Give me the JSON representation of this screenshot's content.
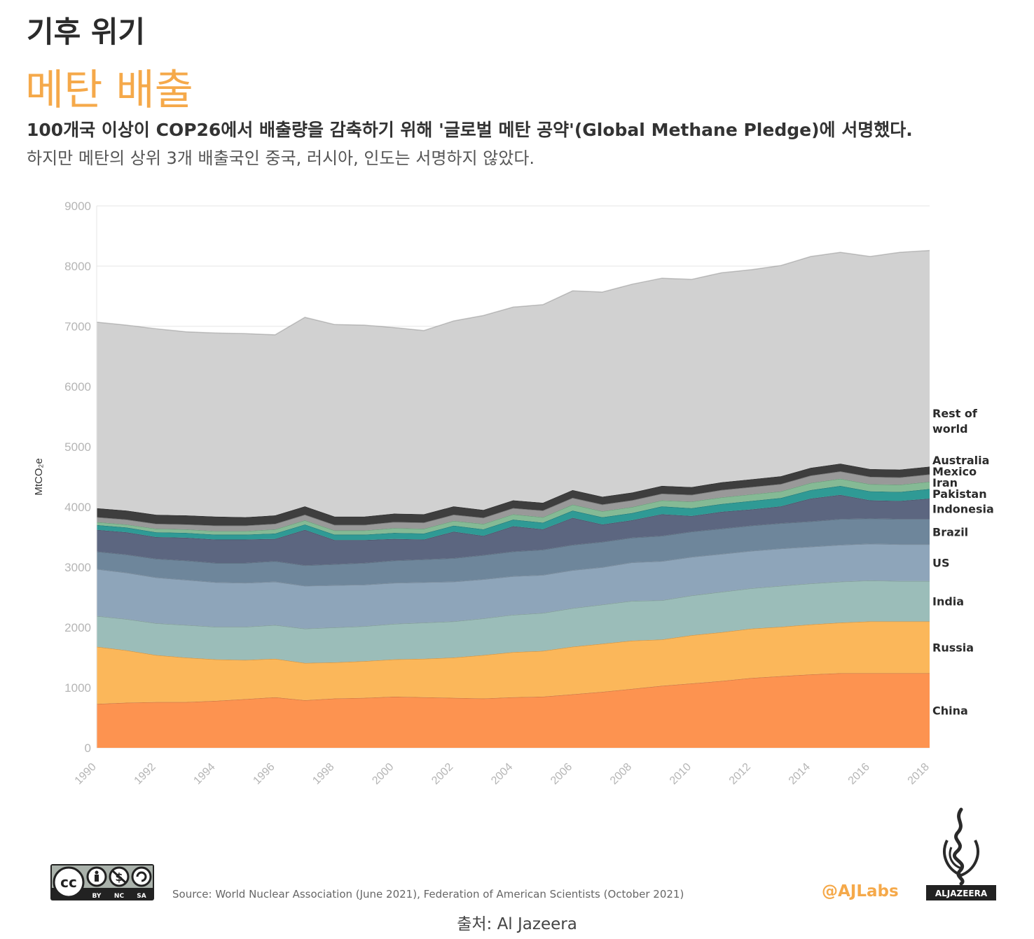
{
  "header": {
    "kicker": "기후 위기",
    "title": "메탄 배출",
    "subtitle_bold": "100개국 이상이 COP26에서 배출량을 감축하기 위해 '글로벌 메탄 공약'(Global Methane Pledge)에 서명했다.",
    "subtitle": "하지만 메탄의 상위 3개 배출국인 중국, 러시아, 인도는 서명하지 않았다."
  },
  "footer": {
    "source": "Source: World Nuclear Association (June 2021), Federation of American Scientists (October 2021)",
    "handle": "@AJLabs",
    "logo_text": "ALJAZEERA",
    "license_labels": [
      "BY",
      "NC",
      "SA"
    ],
    "credit": "출처: Al Jazeera"
  },
  "chart_data": {
    "type": "area",
    "stacked": true,
    "ylabel": "MtCO₂e",
    "ylim": [
      0,
      9000
    ],
    "yticks": [
      0,
      1000,
      2000,
      3000,
      4000,
      5000,
      6000,
      7000,
      8000,
      9000
    ],
    "xlim": [
      1990,
      2018
    ],
    "xticks": [
      1990,
      1992,
      1994,
      1996,
      1998,
      2000,
      2002,
      2004,
      2006,
      2008,
      2010,
      2012,
      2014,
      2016,
      2018
    ],
    "x": [
      1990,
      1991,
      1992,
      1993,
      1994,
      1995,
      1996,
      1997,
      1998,
      1999,
      2000,
      2001,
      2002,
      2003,
      2004,
      2005,
      2006,
      2007,
      2008,
      2009,
      2010,
      2011,
      2012,
      2013,
      2014,
      2015,
      2016,
      2017,
      2018
    ],
    "grid": true,
    "legend": "right, labels at series ends",
    "series": [
      {
        "name": "China",
        "color": "#fd9350",
        "values": [
          730,
          750,
          760,
          760,
          780,
          810,
          840,
          790,
          820,
          830,
          850,
          840,
          830,
          820,
          840,
          850,
          890,
          930,
          980,
          1030,
          1070,
          1110,
          1160,
          1190,
          1220,
          1240,
          1240,
          1240,
          1240
        ]
      },
      {
        "name": "Russia",
        "color": "#fbb75a",
        "values": [
          950,
          870,
          780,
          740,
          690,
          650,
          640,
          620,
          600,
          610,
          620,
          640,
          670,
          720,
          750,
          760,
          790,
          800,
          800,
          770,
          800,
          810,
          820,
          820,
          830,
          840,
          860,
          860,
          860
        ]
      },
      {
        "name": "India",
        "color": "#9bbdb9",
        "values": [
          510,
          520,
          530,
          540,
          540,
          550,
          560,
          570,
          580,
          580,
          590,
          600,
          600,
          610,
          620,
          630,
          640,
          650,
          660,
          650,
          660,
          670,
          670,
          680,
          680,
          680,
          680,
          670,
          670
        ]
      },
      {
        "name": "US",
        "color": "#8ea5ba",
        "values": [
          780,
          770,
          760,
          750,
          740,
          730,
          720,
          710,
          700,
          690,
          680,
          670,
          660,
          650,
          640,
          630,
          630,
          620,
          640,
          650,
          640,
          630,
          620,
          620,
          610,
          610,
          610,
          610,
          610
        ]
      },
      {
        "name": "Brazil",
        "color": "#6e869b",
        "values": [
          290,
          300,
          310,
          320,
          320,
          330,
          340,
          340,
          350,
          360,
          370,
          380,
          390,
          400,
          410,
          420,
          420,
          420,
          410,
          420,
          420,
          420,
          420,
          420,
          420,
          430,
          420,
          420,
          420
        ]
      },
      {
        "name": "Indonesia",
        "color": "#5c6680",
        "values": [
          360,
          370,
          360,
          380,
          390,
          390,
          370,
          590,
          400,
          380,
          360,
          330,
          440,
          320,
          420,
          340,
          450,
          290,
          290,
          360,
          260,
          280,
          270,
          280,
          380,
          400,
          300,
          300,
          340
        ]
      },
      {
        "name": "Pakistan",
        "color": "#2f9a95",
        "values": [
          80,
          80,
          80,
          80,
          80,
          80,
          90,
          90,
          90,
          90,
          100,
          100,
          100,
          110,
          110,
          110,
          120,
          120,
          120,
          130,
          130,
          130,
          140,
          140,
          140,
          150,
          150,
          150,
          160
        ]
      },
      {
        "name": "Iran",
        "color": "#85ba95",
        "values": [
          50,
          50,
          60,
          60,
          60,
          60,
          70,
          70,
          70,
          70,
          80,
          80,
          80,
          90,
          90,
          90,
          100,
          100,
          100,
          100,
          110,
          110,
          110,
          110,
          120,
          120,
          120,
          120,
          120
        ]
      },
      {
        "name": "Mexico",
        "color": "#999999",
        "values": [
          80,
          80,
          80,
          80,
          90,
          90,
          90,
          90,
          90,
          90,
          100,
          100,
          100,
          100,
          100,
          110,
          110,
          110,
          110,
          110,
          110,
          120,
          120,
          120,
          120,
          120,
          120,
          120,
          120
        ]
      },
      {
        "name": "Australia",
        "color": "#3e3e3e",
        "values": [
          150,
          150,
          150,
          150,
          150,
          140,
          140,
          140,
          140,
          140,
          140,
          140,
          140,
          130,
          130,
          130,
          130,
          130,
          130,
          130,
          130,
          130,
          130,
          130,
          130,
          130,
          130,
          130,
          130
        ]
      },
      {
        "name": "Rest of world",
        "color": "#d1d1d1",
        "values": [
          3090,
          3080,
          3090,
          3050,
          3050,
          3050,
          3000,
          3140,
          3190,
          3180,
          3090,
          3050,
          3080,
          3230,
          3210,
          3290,
          3310,
          3400,
          3460,
          3450,
          3450,
          3480,
          3480,
          3500,
          3510,
          3510,
          3530,
          3610,
          3590
        ]
      }
    ]
  }
}
